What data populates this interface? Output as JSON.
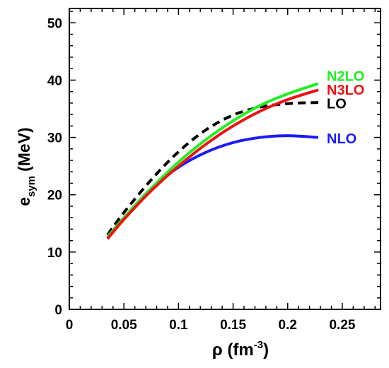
{
  "chart_data": {
    "type": "line",
    "xlabel": "ρ (fm",
    "xlabel_sup": "-3",
    "xlabel_close": ")",
    "ylabel": "e",
    "ylabel_sub": "sym",
    "ylabel_unit": "(MeV)",
    "xlim": [
      0,
      0.285
    ],
    "ylim": [
      0,
      52.5
    ],
    "x_ticks": [
      0,
      0.05,
      0.1,
      0.15,
      0.2,
      0.25
    ],
    "x_tick_labels": [
      "0",
      "0.05",
      "0.1",
      "0.15",
      "0.2",
      "0.25"
    ],
    "y_ticks": [
      0,
      10,
      20,
      30,
      40,
      50
    ],
    "y_tick_labels": [
      "0",
      "10",
      "20",
      "30",
      "40",
      "50"
    ],
    "grid": false,
    "legend": "inline labels at right end of curves",
    "series": [
      {
        "name": "LO",
        "color": "#000000",
        "dashed": true,
        "x": [
          0.035,
          0.05,
          0.075,
          0.1,
          0.125,
          0.15,
          0.175,
          0.2,
          0.228
        ],
        "y": [
          13.0,
          16.9,
          22.6,
          27.5,
          31.3,
          33.9,
          35.3,
          35.9,
          36.1
        ]
      },
      {
        "name": "NLO",
        "color": "#1a1aff",
        "dashed": false,
        "x": [
          0.035,
          0.05,
          0.075,
          0.1,
          0.125,
          0.15,
          0.175,
          0.2,
          0.228
        ],
        "y": [
          12.4,
          15.9,
          21.1,
          24.8,
          27.4,
          29.1,
          30.0,
          30.3,
          30.0
        ]
      },
      {
        "name": "N2LO",
        "color": "#22ee22",
        "dashed": false,
        "x": [
          0.035,
          0.05,
          0.075,
          0.1,
          0.125,
          0.15,
          0.175,
          0.2,
          0.228
        ],
        "y": [
          12.6,
          16.0,
          21.1,
          25.7,
          29.6,
          32.9,
          35.6,
          37.6,
          39.4
        ]
      },
      {
        "name": "N3LO",
        "color": "#ee1111",
        "dashed": false,
        "x": [
          0.035,
          0.05,
          0.075,
          0.1,
          0.125,
          0.15,
          0.175,
          0.2,
          0.228
        ],
        "y": [
          12.3,
          15.7,
          20.7,
          25.0,
          28.8,
          32.0,
          34.6,
          36.6,
          38.3
        ]
      }
    ],
    "labels": [
      {
        "text": "N2LO",
        "color": "#22ee22",
        "y": 40.7
      },
      {
        "text": "N3LO",
        "color": "#ee1111",
        "y": 38.3
      },
      {
        "text": "LO",
        "color": "#000000",
        "y": 35.9
      },
      {
        "text": "NLO",
        "color": "#1a1aff",
        "y": 29.8
      }
    ]
  }
}
